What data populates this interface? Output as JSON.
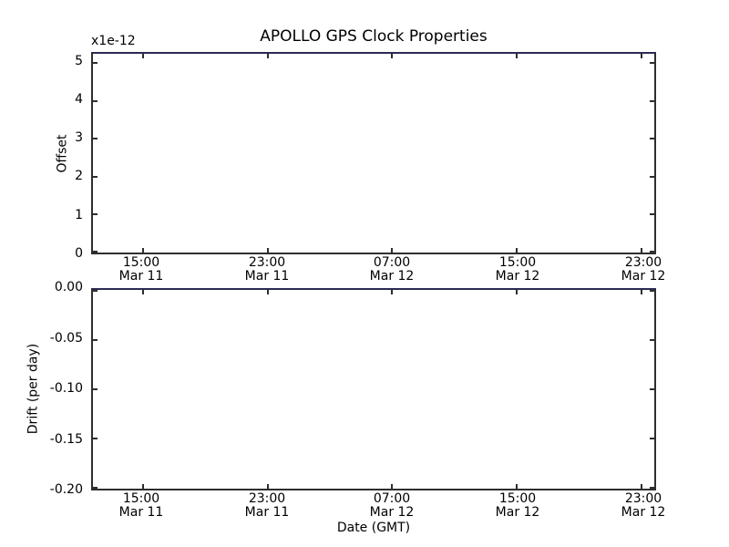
{
  "figure": {
    "title": "APOLLO GPS Clock Properties",
    "xlabel": "Date (GMT)",
    "background_color": "#ffffff",
    "text_color": "#000000",
    "frame_color": "#2e2e2e",
    "frame_top_line_color": "#2b2b52"
  },
  "chart_data": [
    {
      "type": "line",
      "name": "offset",
      "title": "APOLLO GPS Clock Properties",
      "ylabel": "Offset",
      "y_offset_text": "x1e-12",
      "ylim": [
        0,
        5.25
      ],
      "grid": false,
      "legend": "none",
      "yticks": [
        {
          "value": 5,
          "label": "5"
        },
        {
          "value": 4,
          "label": "4"
        },
        {
          "value": 3,
          "label": "3"
        },
        {
          "value": 2,
          "label": "2"
        },
        {
          "value": 1,
          "label": "1"
        },
        {
          "value": 0,
          "label": "0"
        }
      ],
      "xticks": [
        {
          "frac": 0.089,
          "line1": "15:00",
          "line2": "Mar 11"
        },
        {
          "frac": 0.311,
          "line1": "23:00",
          "line2": "Mar 11"
        },
        {
          "frac": 0.533,
          "line1": "07:00",
          "line2": "Mar 12"
        },
        {
          "frac": 0.755,
          "line1": "15:00",
          "line2": "Mar 12"
        },
        {
          "frac": 0.977,
          "line1": "23:00",
          "line2": "Mar 12"
        }
      ],
      "series": []
    },
    {
      "type": "line",
      "name": "drift",
      "ylabel": "Drift (per day)",
      "xlabel": "Date (GMT)",
      "ylim": [
        -0.2,
        0.0
      ],
      "grid": false,
      "legend": "none",
      "yticks": [
        {
          "value": 0.0,
          "label": "0.00"
        },
        {
          "value": -0.05,
          "label": "-0.05"
        },
        {
          "value": -0.1,
          "label": "-0.10"
        },
        {
          "value": -0.15,
          "label": "-0.15"
        },
        {
          "value": -0.2,
          "label": "-0.20"
        }
      ],
      "xticks": [
        {
          "frac": 0.089,
          "line1": "15:00",
          "line2": "Mar 11"
        },
        {
          "frac": 0.311,
          "line1": "23:00",
          "line2": "Mar 11"
        },
        {
          "frac": 0.533,
          "line1": "07:00",
          "line2": "Mar 12"
        },
        {
          "frac": 0.755,
          "line1": "15:00",
          "line2": "Mar 12"
        },
        {
          "frac": 0.977,
          "line1": "23:00",
          "line2": "Mar 12"
        }
      ],
      "series": []
    }
  ]
}
